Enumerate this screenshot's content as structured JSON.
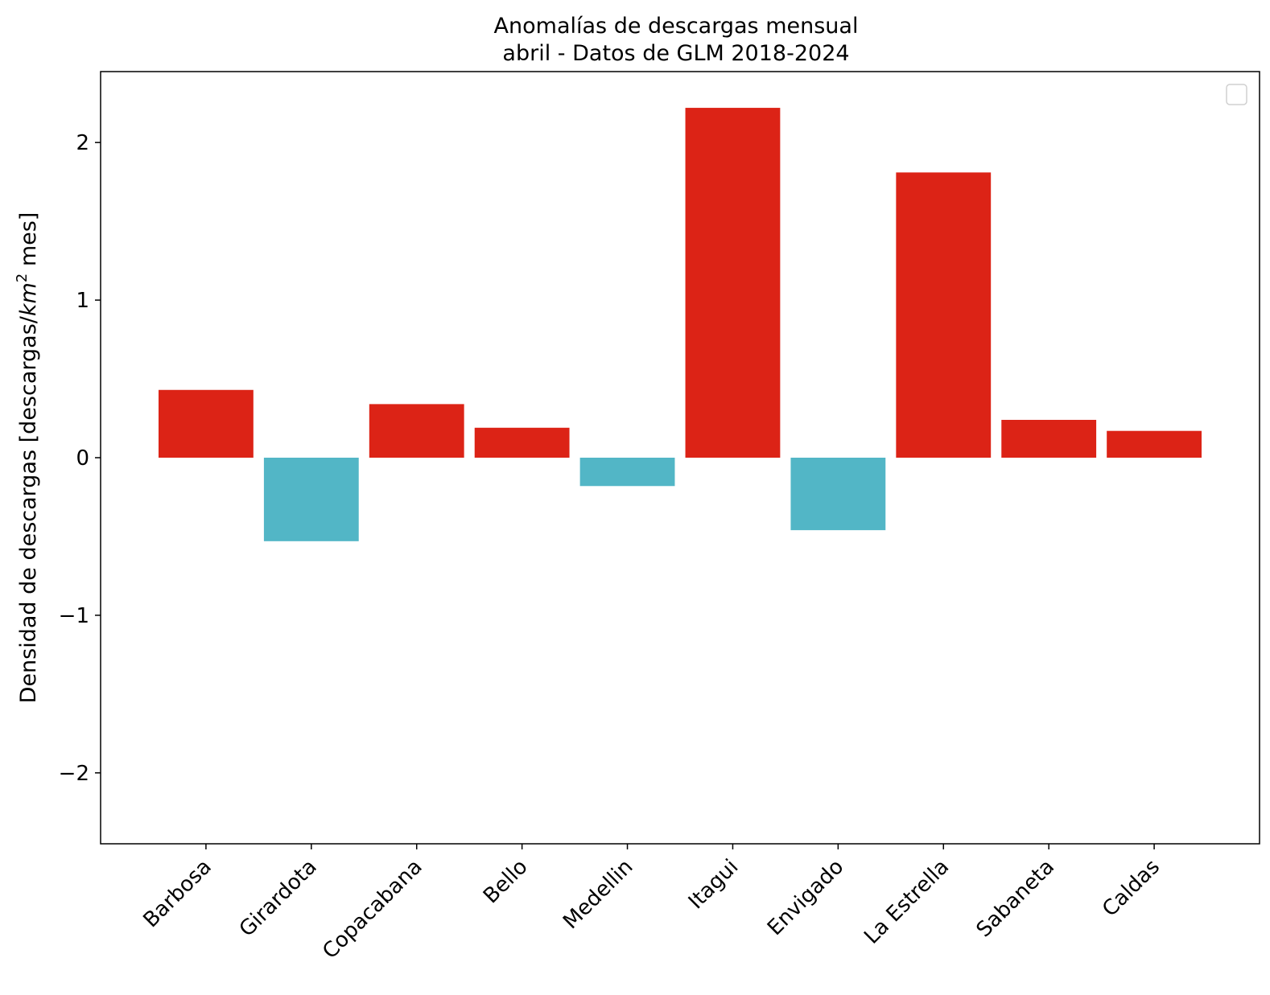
{
  "chart_data": {
    "type": "bar",
    "title_lines": [
      "Anomalías de descargas mensual",
      "abril - Datos de GLM 2018-2024"
    ],
    "ylabel": {
      "pre": "Densidad de descargas [descargas/",
      "unit": "km",
      "sup": "2",
      "post": " mes]"
    },
    "xlabel": "",
    "categories": [
      "Barbosa",
      "Girardota",
      "Copacabana",
      "Bello",
      "Medellin",
      "Itagui",
      "Envigado",
      "La Estrella",
      "Sabaneta",
      "Caldas"
    ],
    "values": [
      0.43,
      -0.53,
      0.34,
      0.19,
      -0.18,
      2.22,
      -0.46,
      1.81,
      0.24,
      0.17
    ],
    "ylim": [
      -2.45,
      2.45
    ],
    "yticks": [
      -2,
      -1,
      0,
      1,
      2
    ],
    "ytick_labels": [
      "−2",
      "−1",
      "0",
      "1",
      "2"
    ],
    "colors": {
      "positive": "#dc2316",
      "negative": "#52b6c6"
    },
    "legend": "top-right",
    "grid": false
  }
}
